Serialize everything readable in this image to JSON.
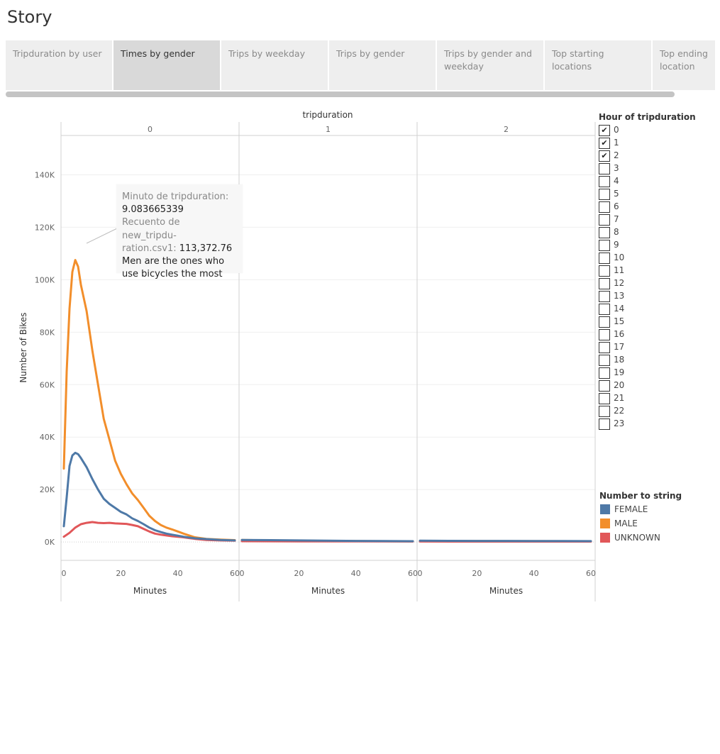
{
  "story": {
    "title": "Story"
  },
  "tabs": [
    {
      "label": "Tripduration by user",
      "active": false
    },
    {
      "label": "Times by gender",
      "active": true
    },
    {
      "label": "Trips by weekday",
      "active": false
    },
    {
      "label": "Trips by gender",
      "active": false
    },
    {
      "label": "Trips by gender and weekday",
      "active": false
    },
    {
      "label": "Top starting locations",
      "active": false
    },
    {
      "label": "Top ending location",
      "active": false
    }
  ],
  "filter": {
    "title": "Hour of tripduration",
    "items": [
      {
        "label": "0",
        "checked": true
      },
      {
        "label": "1",
        "checked": true
      },
      {
        "label": "2",
        "checked": true
      },
      {
        "label": "3",
        "checked": false
      },
      {
        "label": "4",
        "checked": false
      },
      {
        "label": "5",
        "checked": false
      },
      {
        "label": "6",
        "checked": false
      },
      {
        "label": "7",
        "checked": false
      },
      {
        "label": "8",
        "checked": false
      },
      {
        "label": "9",
        "checked": false
      },
      {
        "label": "10",
        "checked": false
      },
      {
        "label": "11",
        "checked": false
      },
      {
        "label": "12",
        "checked": false
      },
      {
        "label": "13",
        "checked": false
      },
      {
        "label": "14",
        "checked": false
      },
      {
        "label": "15",
        "checked": false
      },
      {
        "label": "16",
        "checked": false
      },
      {
        "label": "17",
        "checked": false
      },
      {
        "label": "18",
        "checked": false
      },
      {
        "label": "19",
        "checked": false
      },
      {
        "label": "20",
        "checked": false
      },
      {
        "label": "21",
        "checked": false
      },
      {
        "label": "22",
        "checked": false
      },
      {
        "label": "23",
        "checked": false
      }
    ]
  },
  "color_legend": {
    "title": "Number to string",
    "items": [
      {
        "label": "FEMALE",
        "color": "#4e79a7"
      },
      {
        "label": "MALE",
        "color": "#f28e2b"
      },
      {
        "label": "UNKNOWN",
        "color": "#e15759"
      }
    ]
  },
  "tooltip": {
    "label1": "Minuto de tripduration:",
    "value1": "9.083665339",
    "label2a": "Recuento de new_tripdu-",
    "label2b": "ration.csv1:",
    "value2": "113,372.76",
    "note1": "Men are the ones who",
    "note2": "use bicycles the most"
  },
  "chart_data": {
    "type": "line",
    "column_header": "tripduration",
    "panels": [
      "0",
      "1",
      "2"
    ],
    "xlabel": "Minutes",
    "ylabel": "Number of Bikes",
    "xlim": [
      0,
      60
    ],
    "ylim": [
      -7000,
      155000
    ],
    "xticks": [
      0,
      20,
      40,
      60
    ],
    "yticks": [
      0,
      20000,
      40000,
      60000,
      80000,
      100000,
      120000,
      140000
    ],
    "ytick_labels": [
      "0K",
      "20K",
      "40K",
      "60K",
      "80K",
      "100K",
      "120K",
      "140K"
    ],
    "grid": true,
    "series": [
      {
        "name": "MALE",
        "color": "#f28e2b",
        "panels": [
          {
            "x": [
              0,
              1,
              2,
              3,
              4,
              5,
              6,
              8,
              10,
              12,
              14,
              16,
              18,
              20,
              22,
              24,
              26,
              28,
              30,
              32,
              34,
              36,
              38,
              40,
              42,
              44,
              46,
              50,
              55,
              60
            ],
            "y": [
              28000,
              65000,
              89000,
              103000,
              107500,
              105000,
              98000,
              88000,
              73000,
              60000,
              47000,
              39000,
              31000,
              26000,
              22000,
              18500,
              16000,
              13000,
              10000,
              8000,
              6500,
              5500,
              4800,
              4000,
              3200,
              2500,
              1800,
              1200,
              900,
              700
            ]
          },
          {
            "x": [
              0,
              10,
              20,
              30,
              40,
              50,
              60
            ],
            "y": [
              800,
              600,
              500,
              400,
              350,
              300,
              250
            ]
          },
          {
            "x": [
              0,
              10,
              20,
              30,
              40,
              50,
              60
            ],
            "y": [
              400,
              380,
              360,
              340,
              320,
              300,
              280
            ]
          }
        ]
      },
      {
        "name": "UNKNOWN",
        "color": "#e15759",
        "panels": [
          {
            "x": [
              0,
              2,
              4,
              6,
              8,
              10,
              12,
              14,
              16,
              18,
              20,
              22,
              24,
              26,
              28,
              30,
              32,
              34,
              36,
              38,
              40,
              42,
              44,
              46,
              50,
              55,
              60
            ],
            "y": [
              2000,
              3500,
              5500,
              6800,
              7300,
              7600,
              7300,
              7200,
              7300,
              7100,
              7000,
              6900,
              6500,
              6000,
              5000,
              4000,
              3200,
              2800,
              2500,
              2200,
              2000,
              1800,
              1500,
              1200,
              800,
              600,
              500
            ]
          },
          {
            "x": [
              0,
              20,
              40,
              60
            ],
            "y": [
              300,
              250,
              220,
              200
            ]
          },
          {
            "x": [
              0,
              20,
              40,
              60
            ],
            "y": [
              200,
              180,
              170,
              160
            ]
          }
        ]
      },
      {
        "name": "FEMALE",
        "color": "#4e79a7",
        "panels": [
          {
            "x": [
              0,
              1,
              2,
              3,
              4,
              5,
              6,
              8,
              10,
              12,
              14,
              16,
              18,
              20,
              22,
              24,
              26,
              28,
              30,
              32,
              34,
              36,
              38,
              40,
              42,
              44,
              46,
              50,
              55,
              60
            ],
            "y": [
              6000,
              17000,
              29000,
              33000,
              34000,
              33500,
              32000,
              28500,
              24000,
              20000,
              16500,
              14500,
              13000,
              11500,
              10500,
              9000,
              8000,
              6800,
              5500,
              4500,
              3800,
              3200,
              2800,
              2400,
              2000,
              1700,
              1400,
              1100,
              800,
              600
            ]
          },
          {
            "x": [
              0,
              10,
              20,
              30,
              40,
              50,
              60
            ],
            "y": [
              800,
              700,
              600,
              500,
              400,
              350,
              300
            ]
          },
          {
            "x": [
              0,
              10,
              20,
              30,
              40,
              50,
              60
            ],
            "y": [
              500,
              450,
              420,
              400,
              380,
              360,
              340
            ]
          }
        ]
      }
    ]
  }
}
